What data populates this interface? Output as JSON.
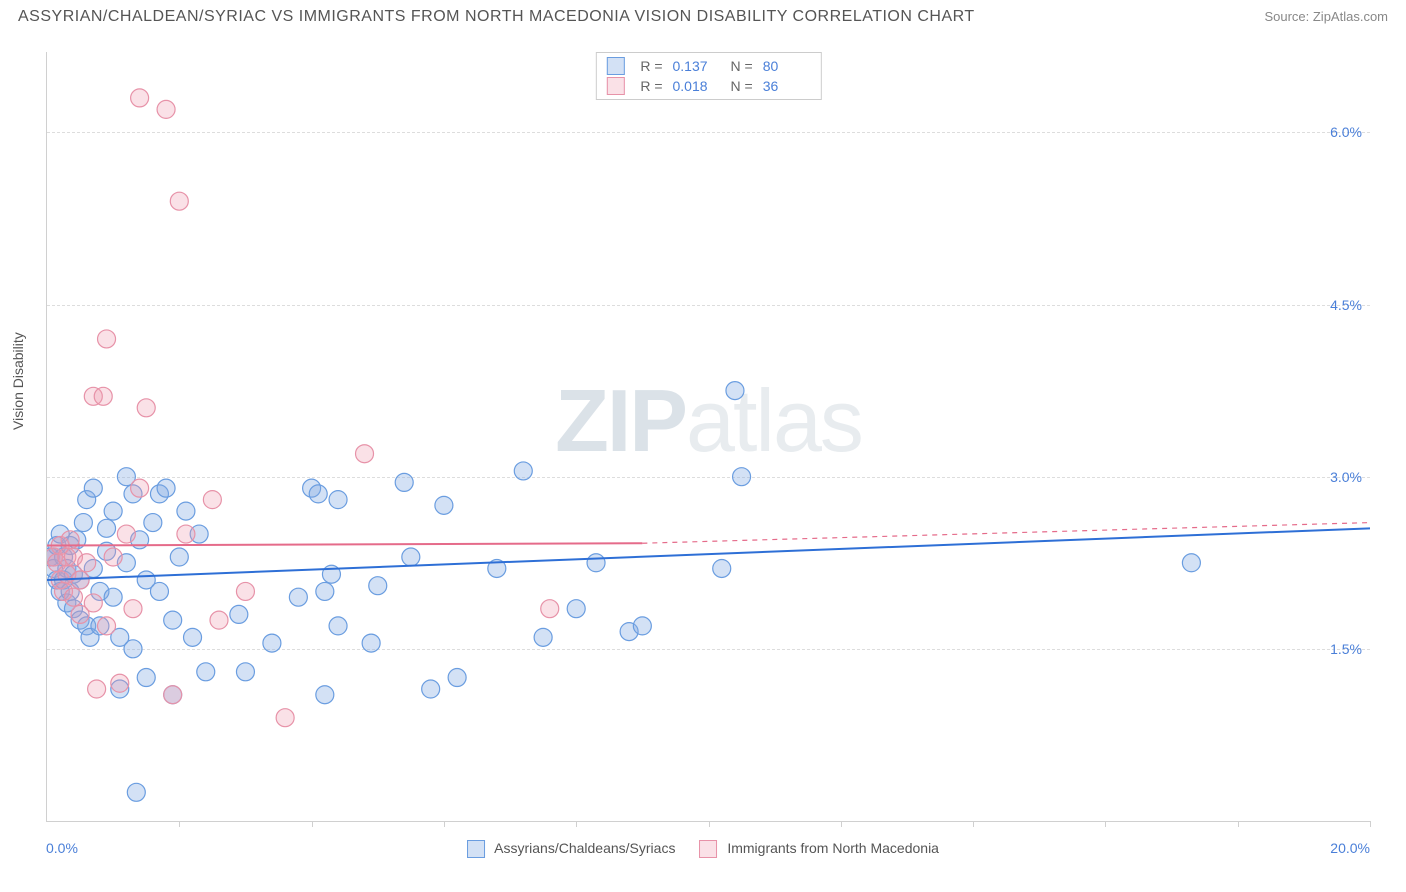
{
  "header": {
    "title": "ASSYRIAN/CHALDEAN/SYRIAC VS IMMIGRANTS FROM NORTH MACEDONIA VISION DISABILITY CORRELATION CHART",
    "source": "Source: ZipAtlas.com"
  },
  "chart": {
    "type": "scatter",
    "ylabel": "Vision Disability",
    "xlim": [
      0,
      20
    ],
    "ylim": [
      0,
      6.7
    ],
    "xtick_step_pct": 10,
    "ytick_values": [
      1.5,
      3.0,
      4.5,
      6.0
    ],
    "ytick_labels": [
      "1.5%",
      "3.0%",
      "4.5%",
      "6.0%"
    ],
    "xaxis_min_label": "0.0%",
    "xaxis_max_label": "20.0%",
    "background_color": "#ffffff",
    "grid_color": "#dddddd",
    "marker_radius": 9,
    "marker_stroke_width": 1.2,
    "line_width": 2,
    "watermark_text_bold": "ZIP",
    "watermark_text_light": "atlas",
    "series": [
      {
        "name": "Assyrians/Chaldeans/Syriacs",
        "color_fill": "rgba(130,170,225,0.35)",
        "color_stroke": "#6a9de0",
        "line_color": "#2e6fd6",
        "r_value": "0.137",
        "n_value": "80",
        "trend_solid": {
          "x1": 0,
          "y1": 2.1,
          "x2": 20,
          "y2": 2.55
        },
        "trend_dashed": null,
        "points": [
          [
            0.05,
            2.3
          ],
          [
            0.1,
            2.3
          ],
          [
            0.1,
            2.2
          ],
          [
            0.15,
            2.4
          ],
          [
            0.15,
            2.1
          ],
          [
            0.2,
            2.0
          ],
          [
            0.2,
            2.5
          ],
          [
            0.25,
            2.3
          ],
          [
            0.25,
            2.1
          ],
          [
            0.3,
            2.2
          ],
          [
            0.3,
            1.9
          ],
          [
            0.35,
            2.4
          ],
          [
            0.35,
            2.0
          ],
          [
            0.4,
            2.15
          ],
          [
            0.4,
            1.85
          ],
          [
            0.45,
            2.45
          ],
          [
            0.5,
            2.1
          ],
          [
            0.5,
            1.75
          ],
          [
            0.55,
            2.6
          ],
          [
            0.6,
            1.7
          ],
          [
            0.6,
            2.8
          ],
          [
            0.65,
            1.6
          ],
          [
            0.7,
            2.2
          ],
          [
            0.7,
            2.9
          ],
          [
            0.8,
            2.0
          ],
          [
            0.8,
            1.7
          ],
          [
            0.9,
            2.35
          ],
          [
            0.9,
            2.55
          ],
          [
            1.0,
            1.95
          ],
          [
            1.0,
            2.7
          ],
          [
            1.1,
            1.6
          ],
          [
            1.1,
            1.15
          ],
          [
            1.2,
            2.25
          ],
          [
            1.2,
            3.0
          ],
          [
            1.3,
            2.85
          ],
          [
            1.3,
            1.5
          ],
          [
            1.4,
            2.45
          ],
          [
            1.5,
            2.1
          ],
          [
            1.5,
            1.25
          ],
          [
            1.6,
            2.6
          ],
          [
            1.7,
            2.0
          ],
          [
            1.7,
            2.85
          ],
          [
            1.8,
            2.9
          ],
          [
            1.9,
            1.75
          ],
          [
            1.9,
            1.1
          ],
          [
            2.0,
            2.3
          ],
          [
            2.1,
            2.7
          ],
          [
            2.2,
            1.6
          ],
          [
            2.3,
            2.5
          ],
          [
            2.4,
            1.3
          ],
          [
            2.9,
            1.8
          ],
          [
            3.0,
            1.3
          ],
          [
            3.4,
            1.55
          ],
          [
            3.8,
            1.95
          ],
          [
            4.0,
            2.9
          ],
          [
            4.1,
            2.85
          ],
          [
            4.2,
            2.0
          ],
          [
            4.2,
            1.1
          ],
          [
            4.3,
            2.15
          ],
          [
            4.4,
            1.7
          ],
          [
            4.4,
            2.8
          ],
          [
            4.9,
            1.55
          ],
          [
            5.0,
            2.05
          ],
          [
            5.4,
            2.95
          ],
          [
            5.5,
            2.3
          ],
          [
            5.8,
            1.15
          ],
          [
            6.0,
            2.75
          ],
          [
            6.2,
            1.25
          ],
          [
            6.8,
            2.2
          ],
          [
            7.2,
            3.05
          ],
          [
            7.5,
            1.6
          ],
          [
            8.0,
            1.85
          ],
          [
            8.3,
            2.25
          ],
          [
            8.8,
            1.65
          ],
          [
            9.0,
            1.7
          ],
          [
            10.2,
            2.2
          ],
          [
            10.4,
            3.75
          ],
          [
            10.5,
            3.0
          ],
          [
            17.3,
            2.25
          ],
          [
            1.35,
            0.25
          ]
        ]
      },
      {
        "name": "Immigrants from North Macedonia",
        "color_fill": "rgba(240,155,175,0.3)",
        "color_stroke": "#e792a8",
        "line_color": "#e56b8a",
        "r_value": "0.018",
        "n_value": "36",
        "trend_solid": {
          "x1": 0,
          "y1": 2.4,
          "x2": 9,
          "y2": 2.42
        },
        "trend_dashed": {
          "x1": 9,
          "y1": 2.42,
          "x2": 20,
          "y2": 2.6
        },
        "points": [
          [
            0.1,
            2.3
          ],
          [
            0.15,
            2.25
          ],
          [
            0.2,
            2.1
          ],
          [
            0.2,
            2.4
          ],
          [
            0.25,
            2.0
          ],
          [
            0.3,
            2.3
          ],
          [
            0.3,
            2.15
          ],
          [
            0.35,
            2.45
          ],
          [
            0.4,
            1.95
          ],
          [
            0.4,
            2.3
          ],
          [
            0.5,
            2.1
          ],
          [
            0.5,
            1.8
          ],
          [
            0.6,
            2.25
          ],
          [
            0.7,
            1.9
          ],
          [
            0.7,
            3.7
          ],
          [
            0.75,
            1.15
          ],
          [
            0.85,
            3.7
          ],
          [
            0.9,
            1.7
          ],
          [
            0.9,
            4.2
          ],
          [
            1.0,
            2.3
          ],
          [
            1.1,
            1.2
          ],
          [
            1.2,
            2.5
          ],
          [
            1.3,
            1.85
          ],
          [
            1.4,
            2.9
          ],
          [
            1.4,
            6.3
          ],
          [
            1.5,
            3.6
          ],
          [
            1.8,
            6.2
          ],
          [
            1.9,
            1.1
          ],
          [
            2.0,
            5.4
          ],
          [
            2.1,
            2.5
          ],
          [
            2.5,
            2.8
          ],
          [
            2.6,
            1.75
          ],
          [
            3.0,
            2.0
          ],
          [
            3.6,
            0.9
          ],
          [
            4.8,
            3.2
          ],
          [
            7.6,
            1.85
          ]
        ]
      }
    ]
  },
  "bottom_legend": {
    "items": [
      {
        "label": "Assyrians/Chaldeans/Syriacs",
        "fill": "rgba(130,170,225,0.5)",
        "stroke": "#6a9de0"
      },
      {
        "label": "Immigrants from North Macedonia",
        "fill": "rgba(240,155,175,0.45)",
        "stroke": "#e792a8"
      }
    ]
  }
}
